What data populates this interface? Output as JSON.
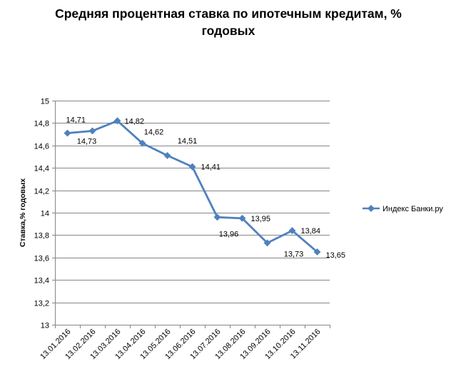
{
  "chart_data": {
    "type": "line",
    "title": "Средняя процентная  ставка по ипотечным кредитам, %",
    "title_line2": "годовых",
    "ylabel": "Ставка,% годовых",
    "xlabel": "",
    "categories": [
      "13.01.2016",
      "13.02.2016",
      "13.03.2016",
      "13.04.2016",
      "13.05.2016",
      "13.06.2016",
      "13.07.2016",
      "13.08.2016",
      "13.09.2016",
      "13.10.2016",
      "13.11.2016"
    ],
    "series": [
      {
        "name": "Индекс Банки.ру",
        "values": [
          14.71,
          14.73,
          14.82,
          14.62,
          14.51,
          14.41,
          13.96,
          13.95,
          13.73,
          13.84,
          13.65
        ],
        "labels": [
          "14,71",
          "14,73",
          "14,82",
          "14,62",
          "14,51",
          "14,41",
          "13,96",
          "13,95",
          "13,73",
          "13,84",
          "13,65"
        ],
        "color": "#4f81bd"
      }
    ],
    "ylim": [
      13,
      15
    ],
    "yticks": [
      13,
      13.2,
      13.4,
      13.6,
      13.8,
      14,
      14.2,
      14.4,
      14.6,
      14.8,
      15
    ],
    "ytick_labels": [
      "13",
      "13,2",
      "13,4",
      "13,6",
      "13,8",
      "14",
      "14,2",
      "14,4",
      "14,6",
      "14,8",
      "15"
    ],
    "grid": true,
    "legend_position": "right",
    "gridline_color": "#868686"
  }
}
